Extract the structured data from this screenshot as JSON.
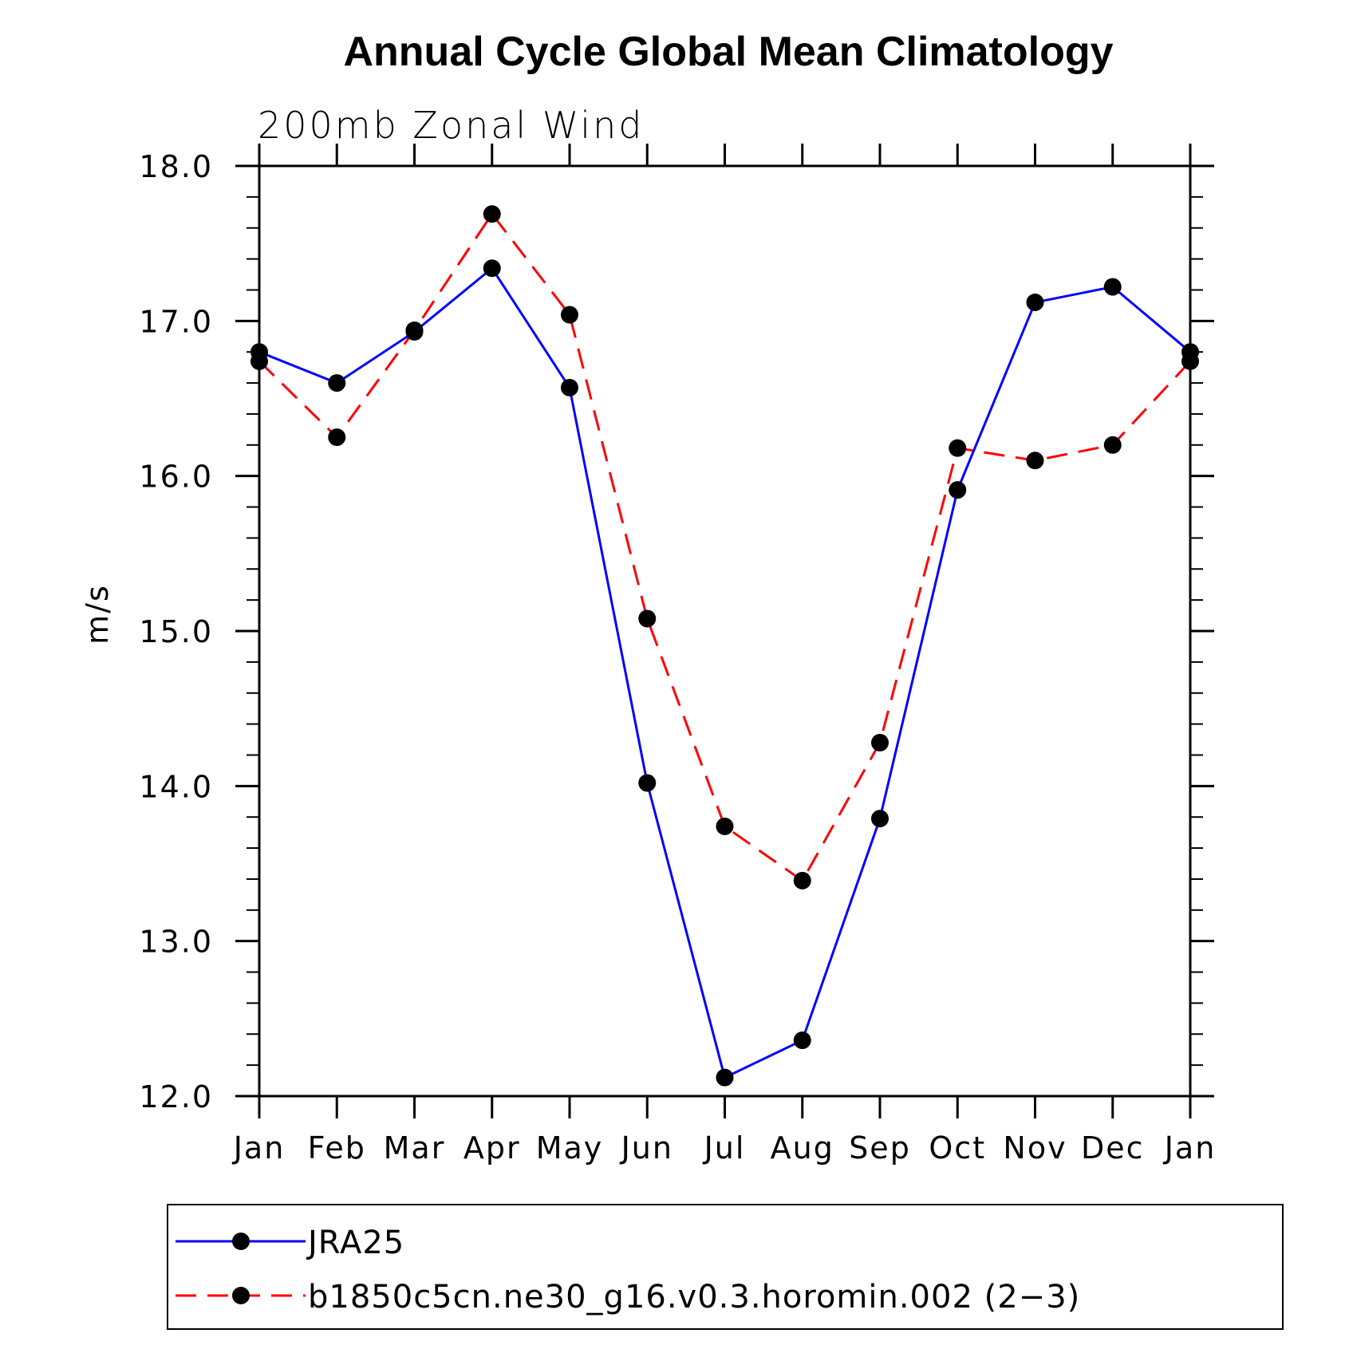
{
  "chart_data": {
    "type": "line",
    "title": "Annual Cycle Global Mean Climatology",
    "subtitle": "200mb  Zonal  Wind",
    "xlabel": "",
    "ylabel": "m/s",
    "categories": [
      "Jan",
      "Feb",
      "Mar",
      "Apr",
      "May",
      "Jun",
      "Jul",
      "Aug",
      "Sep",
      "Oct",
      "Nov",
      "Dec",
      "Jan"
    ],
    "ylim": [
      12.0,
      18.0
    ],
    "yticks": [
      "12.0",
      "13.0",
      "14.0",
      "15.0",
      "16.0",
      "17.0",
      "18.0"
    ],
    "grid": false,
    "legend_position": "bottom",
    "series": [
      {
        "name": "JRA25",
        "color": "#0000ff",
        "dash": "solid",
        "marker": "filled-circle",
        "values": [
          16.8,
          16.6,
          16.93,
          17.34,
          16.57,
          14.02,
          12.12,
          12.36,
          13.79,
          15.91,
          17.12,
          17.22,
          16.8
        ]
      },
      {
        "name": "b1850c5cn.ne30_g16.v0.3.horomin.002 (2−3)",
        "color": "#ff0000",
        "dash": "dashed",
        "marker": "filled-circle",
        "values": [
          16.74,
          16.25,
          16.94,
          17.69,
          17.04,
          15.08,
          13.74,
          13.39,
          14.28,
          16.18,
          16.1,
          16.2,
          16.74
        ]
      }
    ]
  }
}
